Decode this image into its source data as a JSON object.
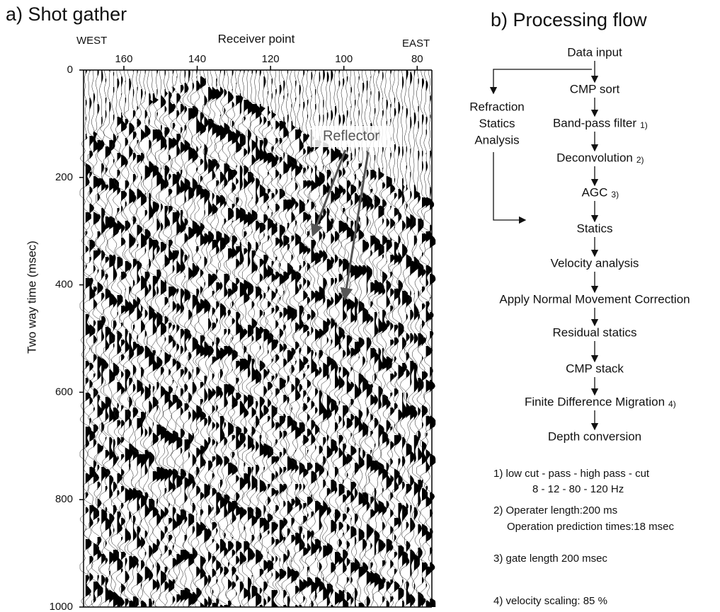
{
  "shot_gather": {
    "title": "a) Shot gather",
    "x_label": "Receiver point",
    "west": "WEST",
    "east": "EAST",
    "xticks": [
      160,
      140,
      120,
      100,
      80
    ],
    "xlim": [
      171,
      76
    ],
    "y_label": "Two way time (msec)",
    "yticks": [
      0,
      200,
      400,
      600,
      800,
      1000
    ],
    "ylim": [
      0,
      1000
    ],
    "annotation": "Reflector"
  },
  "processing_flow": {
    "title": "b) Processing flow",
    "steps": [
      {
        "text": "Data input"
      },
      {
        "text": "CMP sort"
      },
      {
        "text": "Band-pass filter",
        "ref": "1)"
      },
      {
        "text": "Deconvolution",
        "ref": "2)"
      },
      {
        "text": "AGC",
        "ref": "3)"
      },
      {
        "text": "Statics"
      },
      {
        "text": "Velocity analysis"
      },
      {
        "text": "Apply Normal Movement Correction"
      },
      {
        "text": "Residual statics"
      },
      {
        "text": "CMP stack"
      },
      {
        "text": "Finite Difference Migration",
        "ref": "4)"
      },
      {
        "text": "Depth conversion"
      }
    ],
    "side_branch": [
      "Refraction",
      "Statics",
      "Analysis"
    ],
    "notes": [
      "1) low cut - pass - high pass - cut",
      "8  -  12  -  80  -  120 Hz",
      "2) Operater length:200 ms",
      "Operation prediction times:18 msec",
      "3) gate length 200 msec",
      "4) velocity scaling: 85 %"
    ]
  }
}
